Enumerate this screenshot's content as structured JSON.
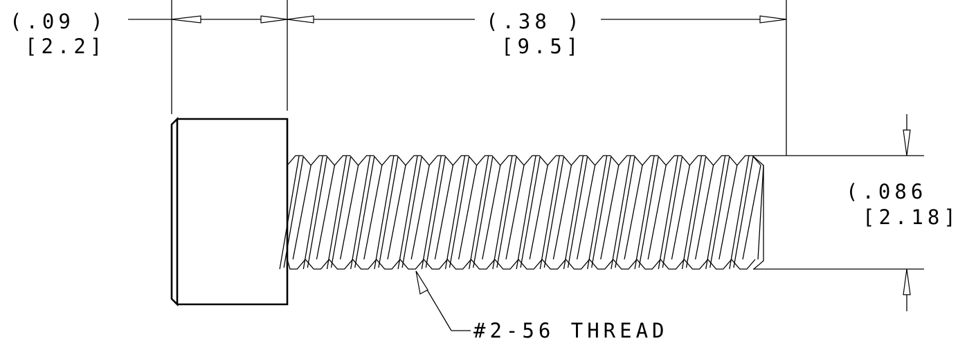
{
  "dimensions": {
    "head_length": {
      "inch": "(.09  )",
      "mm": "[2.2]"
    },
    "shank_length": {
      "inch": "(.38  )",
      "mm": "[9.5]"
    },
    "diameter": {
      "inch": "(.086",
      "mm": "[2.18]"
    }
  },
  "callout": {
    "thread": "#2-56 THREAD"
  },
  "thread": {
    "pitch_count": 20
  }
}
